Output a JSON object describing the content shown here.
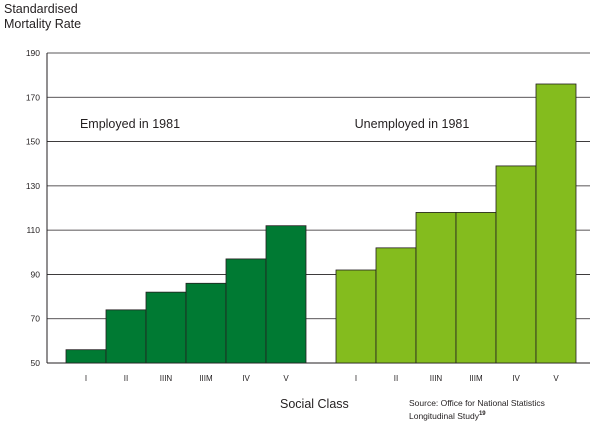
{
  "y_axis_label": [
    "Standardised",
    "Mortality Rate"
  ],
  "x_axis_label": "Social Class",
  "source": {
    "line1": "Source: Office for National Statistics",
    "line2": "Longitudinal Study",
    "footnote": "19"
  },
  "chart_data": {
    "type": "bar",
    "xlabel": "Social Class",
    "ylabel": "Standardised Mortality Rate",
    "ylim": [
      50,
      190
    ],
    "yticks": [
      50,
      70,
      90,
      110,
      130,
      150,
      170,
      190
    ],
    "grid": true,
    "categories": [
      "I",
      "II",
      "IIIN",
      "IIIM",
      "IV",
      "V"
    ],
    "series": [
      {
        "name": "Employed in 1981",
        "color": "#007a33",
        "values": [
          56,
          74,
          82,
          86,
          97,
          112
        ]
      },
      {
        "name": "Unemployed in 1981",
        "color": "#84bc1e",
        "values": [
          92,
          102,
          118,
          118,
          139,
          176
        ]
      }
    ]
  }
}
